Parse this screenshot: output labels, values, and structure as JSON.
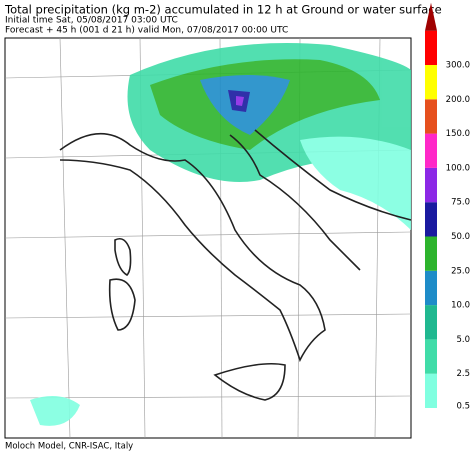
{
  "header": {
    "title": "Total precipitation (kg m-2) accumulated in  12 h at Ground or water surface",
    "initial": "Initial time  Sat, 05/08/2017  03:00 UTC",
    "forecast": "Forecast  +  45 h  (001 d 21 h)  valid Mon, 07/08/2017 00:00 UTC"
  },
  "legend": {
    "items": [
      {
        "label": "0.5",
        "color": "#80ffe0"
      },
      {
        "label": "2.5",
        "color": "#40dca8"
      },
      {
        "label": "5.0",
        "color": "#20b890"
      },
      {
        "label": "10.0",
        "color": "#1e8cc8"
      },
      {
        "label": "25.0",
        "color": "#2db42d"
      },
      {
        "label": "50.0",
        "color": "#1a1aa0"
      },
      {
        "label": "75.0",
        "color": "#8c28e6"
      },
      {
        "label": "100.0",
        "color": "#ff28c8"
      },
      {
        "label": "150.0",
        "color": "#e6501e"
      },
      {
        "label": "200.0",
        "color": "#ffff00"
      },
      {
        "label": "300.0",
        "color": "#ff0000"
      }
    ],
    "top_color": "#a00000"
  },
  "footer": "Moloch Model, CNR-ISAC, Italy"
}
